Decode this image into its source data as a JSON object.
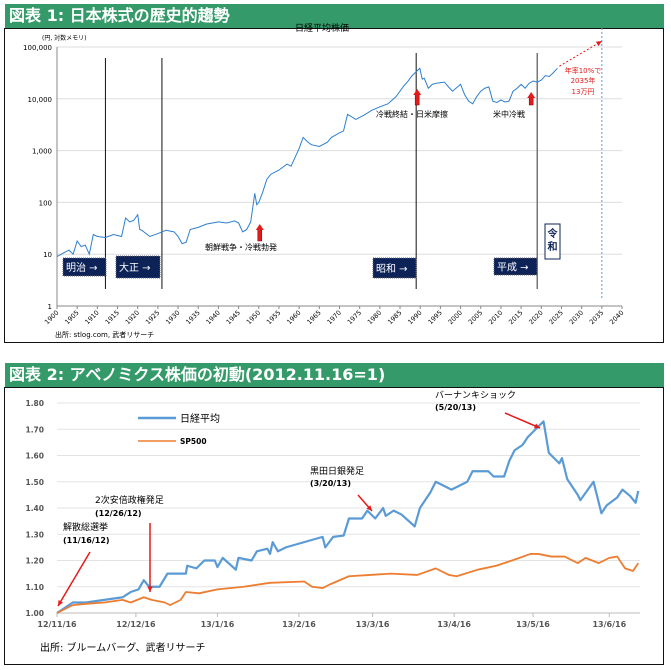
{
  "figure1": {
    "heading": "図表 1: 日本株式の歴史的趨勢",
    "source": "出所: stlog.com, 武者リサーチ",
    "annotations": {
      "korea": "朝鮮戦争・冷戦勃発",
      "coldwar_end": "冷戦終結・日米摩擦",
      "uschina": "米中冷戦",
      "projection": [
        "年率10%で",
        "2035年",
        "13万円"
      ]
    },
    "eras": [
      {
        "label": "明治 →",
        "start_year": 1900
      },
      {
        "label": "大正 →",
        "start_year": 1912
      },
      {
        "label": "昭和 →",
        "start_year": 1926
      },
      {
        "label": "平成 →",
        "start_year": 1989
      },
      {
        "label": "令和",
        "start_year": 2019
      }
    ],
    "colors": {
      "series": "#2e7fd0",
      "arrow": "#e31b1b",
      "era_box": "#0d2358",
      "heading": "#359a69"
    }
  },
  "figure2": {
    "heading": "図表 2: アベノミクス株価の初動(2012.11.16=1)",
    "source": "出所: ブルームバーグ、武者リサーチ",
    "annotations": [
      {
        "title": "バーナンキショック",
        "date": "(5/20/13)"
      },
      {
        "title": "黒田日銀発足",
        "date": "(3/20/13)"
      },
      {
        "title": "2次安倍政権発足",
        "date": "(12/26/12)"
      },
      {
        "title": "解散総選挙",
        "date": "(11/16/12)"
      }
    ],
    "colors": {
      "nikkei": "#5b9bd5",
      "sp500": "#ed7d31"
    }
  },
  "chart_data": [
    {
      "type": "line",
      "title": "日経平均株価",
      "ylabel": "(円, 対数メモリ)",
      "xlabel": "",
      "yscale": "log",
      "ylim": [
        1,
        100000
      ],
      "xlim": [
        1900,
        2040
      ],
      "grid": true,
      "yticks": [
        "1",
        "10",
        "100",
        "1,000",
        "10,000",
        "100,000"
      ],
      "xticks": [
        "1900",
        "1905",
        "1910",
        "1915",
        "1920",
        "1925",
        "1930",
        "1935",
        "1940",
        "1945",
        "1950",
        "1955",
        "1960",
        "1965",
        "1970",
        "1975",
        "1980",
        "1985",
        "1990",
        "1995",
        "2000",
        "2005",
        "2010",
        "2015",
        "2020",
        "2025",
        "2030",
        "2035",
        "2040"
      ],
      "series": [
        {
          "name": "日経平均株価",
          "x": [
            1900,
            1902,
            1903,
            1904,
            1905,
            1906,
            1907,
            1908,
            1909,
            1910,
            1912,
            1914,
            1916,
            1917,
            1918,
            1919,
            1920,
            1920.5,
            1921,
            1923,
            1925,
            1927,
            1929,
            1930,
            1931,
            1932,
            1933,
            1935,
            1937,
            1940,
            1942,
            1944,
            1945,
            1946,
            1947,
            1948,
            1949,
            1949.5,
            1950,
            1951,
            1952,
            1953,
            1955,
            1957,
            1958,
            1960,
            1961,
            1962,
            1963,
            1965,
            1967,
            1968,
            1970,
            1971,
            1972,
            1973,
            1974,
            1976,
            1978,
            1980,
            1982,
            1984,
            1986,
            1987,
            1988,
            1989.9,
            1990.5,
            1991,
            1992,
            1993,
            1994,
            1996,
            1997,
            1998,
            2000,
            2001,
            2002,
            2003,
            2004,
            2005,
            2006,
            2007,
            2008,
            2009,
            2010,
            2011,
            2012,
            2013,
            2014,
            2015,
            2016,
            2017,
            2018,
            2019,
            2020,
            2021,
            2022,
            2023,
            2024
          ],
          "values": [
            9,
            11,
            12,
            10,
            18,
            14,
            15,
            10,
            24,
            22,
            21,
            24,
            22,
            50,
            42,
            45,
            58,
            30,
            29,
            22,
            25,
            29,
            27,
            22,
            16,
            17,
            30,
            33,
            38,
            42,
            40,
            44,
            40,
            27,
            30,
            42,
            150,
            90,
            100,
            160,
            280,
            350,
            420,
            550,
            500,
            1100,
            1800,
            1500,
            1300,
            1200,
            1450,
            1800,
            2200,
            2400,
            5000,
            4500,
            4000,
            4800,
            6000,
            7000,
            8000,
            11000,
            18000,
            22000,
            28000,
            38900,
            24000,
            25000,
            16000,
            19000,
            20000,
            21000,
            17000,
            14000,
            19000,
            12000,
            9000,
            8000,
            11000,
            14000,
            16000,
            17000,
            9000,
            8500,
            9500,
            8700,
            9000,
            14000,
            16000,
            19000,
            16000,
            20000,
            22000,
            21000,
            23000,
            28000,
            27000,
            32000,
            39000
          ]
        }
      ],
      "projection": {
        "x": [
          2024,
          2035
        ],
        "values": [
          39000,
          130000
        ]
      },
      "vertical_lines": [
        1912,
        1926,
        1989,
        2019,
        2035
      ],
      "event_arrows": [
        1950,
        1989,
        2017
      ]
    },
    {
      "type": "line",
      "title": "",
      "xlabel": "",
      "ylabel": "",
      "ylim": [
        1.0,
        1.8
      ],
      "grid": true,
      "legend": "top-left",
      "x_unit": "days since 2012-11-16",
      "yticks": [
        "1.00",
        "1.10",
        "1.20",
        "1.30",
        "1.40",
        "1.50",
        "1.60",
        "1.70",
        "1.80"
      ],
      "xticks": [
        {
          "label": "12/11/16",
          "day": 0
        },
        {
          "label": "12/12/16",
          "day": 30
        },
        {
          "label": "13/1/16",
          "day": 61
        },
        {
          "label": "13/2/16",
          "day": 92
        },
        {
          "label": "13/3/16",
          "day": 120
        },
        {
          "label": "13/4/16",
          "day": 151
        },
        {
          "label": "13/5/16",
          "day": 181
        },
        {
          "label": "13/6/16",
          "day": 210
        }
      ],
      "series": [
        {
          "name": "日経平均",
          "x": [
            0,
            6,
            11,
            18,
            25,
            28,
            31,
            33,
            35,
            39,
            42,
            49,
            49.5,
            53,
            56,
            60,
            61,
            63,
            68,
            69,
            74,
            76,
            80,
            81,
            82,
            84,
            87,
            94,
            101,
            102,
            105,
            109,
            111,
            116,
            118,
            121,
            124,
            125,
            128,
            131,
            136,
            138,
            142,
            144,
            150,
            156,
            158,
            164,
            166,
            170,
            172,
            174,
            177,
            179,
            183,
            185,
            187,
            191,
            192,
            194,
            198,
            199,
            204,
            207,
            209,
            213,
            215,
            218,
            220,
            221
          ],
          "values": [
            1.0,
            1.04,
            1.04,
            1.05,
            1.06,
            1.08,
            1.09,
            1.125,
            1.1,
            1.1,
            1.15,
            1.15,
            1.18,
            1.17,
            1.2,
            1.2,
            1.175,
            1.21,
            1.165,
            1.21,
            1.2,
            1.235,
            1.245,
            1.225,
            1.27,
            1.235,
            1.25,
            1.27,
            1.29,
            1.25,
            1.29,
            1.295,
            1.36,
            1.36,
            1.39,
            1.36,
            1.4,
            1.37,
            1.39,
            1.375,
            1.33,
            1.4,
            1.46,
            1.5,
            1.47,
            1.5,
            1.54,
            1.54,
            1.52,
            1.52,
            1.58,
            1.62,
            1.64,
            1.67,
            1.71,
            1.73,
            1.61,
            1.57,
            1.59,
            1.51,
            1.45,
            1.43,
            1.5,
            1.38,
            1.41,
            1.44,
            1.47,
            1.445,
            1.42,
            1.465
          ]
        },
        {
          "name": "SP500",
          "x": [
            0,
            6,
            11,
            18,
            25,
            28,
            33,
            36,
            41,
            43,
            47,
            49,
            54,
            61,
            71,
            81,
            94,
            97,
            101,
            104,
            111,
            119,
            127,
            137,
            144,
            149,
            152,
            160,
            167,
            173,
            180,
            183,
            188,
            193,
            198,
            201,
            206,
            210,
            213,
            216,
            219,
            221
          ],
          "values": [
            1.0,
            1.03,
            1.035,
            1.04,
            1.05,
            1.04,
            1.06,
            1.05,
            1.04,
            1.03,
            1.05,
            1.08,
            1.075,
            1.09,
            1.1,
            1.115,
            1.12,
            1.1,
            1.095,
            1.11,
            1.14,
            1.145,
            1.15,
            1.145,
            1.17,
            1.145,
            1.14,
            1.165,
            1.18,
            1.2,
            1.225,
            1.225,
            1.215,
            1.215,
            1.19,
            1.21,
            1.19,
            1.21,
            1.215,
            1.17,
            1.16,
            1.19
          ]
        }
      ]
    }
  ]
}
